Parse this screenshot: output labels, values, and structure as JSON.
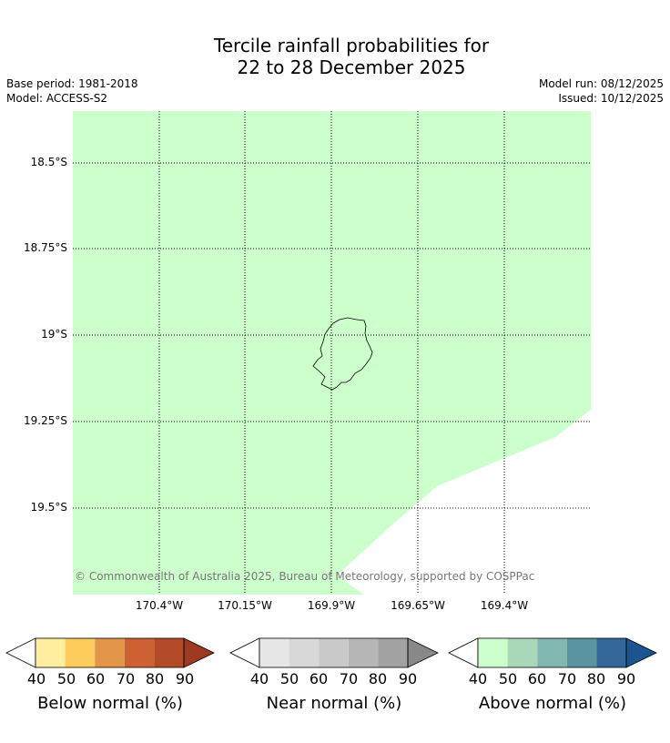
{
  "title": {
    "line1": "Tercile rainfall probabilities for",
    "line2": "22 to 28 December 2025"
  },
  "meta": {
    "base_period": "Base period: 1981-2018",
    "model": "Model: ACCESS-S2",
    "model_run": "Model run: 08/12/2025",
    "issued": "Issued: 10/12/2025"
  },
  "map": {
    "fill_color": "#ccffcc",
    "lat_labels": [
      "18.5°S",
      "18.75°S",
      "19°S",
      "19.25°S",
      "19.5°S"
    ],
    "lon_labels": [
      "170.4°W",
      "170.15°W",
      "169.9°W",
      "169.65°W",
      "169.4°W"
    ],
    "copyright": "© Commonwealth of Australia 2025, Bureau of Meteorology, supported by COSPPac"
  },
  "colorbars": [
    {
      "label": "Below normal (%)",
      "ticks": [
        "40",
        "50",
        "60",
        "70",
        "80",
        "90"
      ],
      "colors": [
        "#ffeda0",
        "#fecc5c",
        "#e3964a",
        "#cd6133",
        "#b34a28"
      ],
      "over_color": "#9c3a22"
    },
    {
      "label": "Near normal (%)",
      "ticks": [
        "40",
        "50",
        "60",
        "70",
        "80",
        "90"
      ],
      "colors": [
        "#e6e6e6",
        "#d8d8d8",
        "#c9c9c9",
        "#b6b6b6",
        "#a2a2a2"
      ],
      "over_color": "#888888"
    },
    {
      "label": "Above normal (%)",
      "ticks": [
        "40",
        "50",
        "60",
        "70",
        "80",
        "90"
      ],
      "colors": [
        "#ccffcc",
        "#a8d8b8",
        "#80b8b0",
        "#5a94a0",
        "#336699"
      ],
      "over_color": "#1a5590"
    }
  ]
}
